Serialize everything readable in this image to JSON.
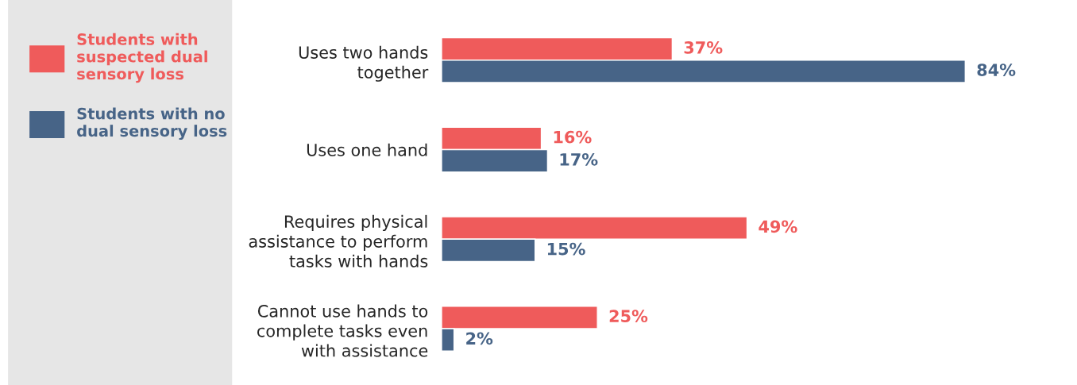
{
  "chart_data": {
    "type": "bar",
    "orientation": "horizontal",
    "categories": [
      "Uses two hands\ntogether",
      "Uses one hand",
      "Requires physical\nassistance to perform\ntasks with hands",
      "Cannot use hands to\ncomplete tasks even\nwith assistance"
    ],
    "series": [
      {
        "name": "Students with\nsuspected dual\nsensory loss",
        "color": "#ef5b5b",
        "values": [
          37,
          16,
          49,
          25
        ],
        "value_labels": [
          "37%",
          "16%",
          "49%",
          "25%"
        ]
      },
      {
        "name": "Students with no\ndual sensory loss",
        "color": "#476487",
        "values": [
          84,
          17,
          15,
          2
        ],
        "value_labels": [
          "84%",
          "17%",
          "15%",
          "2%"
        ]
      }
    ],
    "legend": "left",
    "tick_labels": "y"
  }
}
